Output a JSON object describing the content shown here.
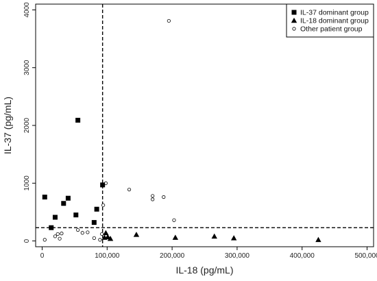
{
  "chart_data": {
    "type": "scatter",
    "title": "",
    "xlabel": "IL-18 (pg/mL)",
    "ylabel": "IL-37 (pg/mL)",
    "xlim": [
      -10000,
      510000
    ],
    "ylim": [
      -100,
      4100
    ],
    "x_ticks": [
      0,
      100000,
      200000,
      300000,
      400000,
      500000
    ],
    "x_tick_labels": [
      "0",
      "100,000",
      "200,000",
      "300,000",
      "400,000",
      "500,000"
    ],
    "y_ticks": [
      0,
      1000,
      2000,
      3000,
      4000
    ],
    "y_tick_labels": [
      "0",
      "1000",
      "2000",
      "3000",
      "4000"
    ],
    "grid": false,
    "legend_position": "top-right",
    "reference_lines": [
      {
        "orientation": "vertical",
        "x": 93000,
        "style": "dashed"
      },
      {
        "orientation": "horizontal",
        "y": 230,
        "style": "dashed"
      }
    ],
    "series": [
      {
        "name": "IL-37 dominant group",
        "marker": "filled-square",
        "color": "#000000",
        "points": [
          {
            "x": 4000,
            "y": 760
          },
          {
            "x": 14000,
            "y": 230
          },
          {
            "x": 20000,
            "y": 410
          },
          {
            "x": 33000,
            "y": 650
          },
          {
            "x": 40000,
            "y": 740
          },
          {
            "x": 52000,
            "y": 450
          },
          {
            "x": 55000,
            "y": 2090
          },
          {
            "x": 80000,
            "y": 320
          },
          {
            "x": 84000,
            "y": 550
          },
          {
            "x": 93000,
            "y": 970
          }
        ]
      },
      {
        "name": "IL-18 dominant group",
        "marker": "filled-triangle",
        "color": "#000000",
        "points": [
          {
            "x": 96000,
            "y": 60
          },
          {
            "x": 98000,
            "y": 140
          },
          {
            "x": 101000,
            "y": 70
          },
          {
            "x": 105000,
            "y": 40
          },
          {
            "x": 145000,
            "y": 110
          },
          {
            "x": 205000,
            "y": 60
          },
          {
            "x": 265000,
            "y": 80
          },
          {
            "x": 295000,
            "y": 50
          },
          {
            "x": 425000,
            "y": 20
          }
        ]
      },
      {
        "name": "Other patient group",
        "marker": "open-circle",
        "color": "#000000",
        "points": [
          {
            "x": 4000,
            "y": 20
          },
          {
            "x": 20000,
            "y": 80
          },
          {
            "x": 24000,
            "y": 120
          },
          {
            "x": 27000,
            "y": 40
          },
          {
            "x": 30000,
            "y": 130
          },
          {
            "x": 55000,
            "y": 190
          },
          {
            "x": 62000,
            "y": 140
          },
          {
            "x": 70000,
            "y": 150
          },
          {
            "x": 80000,
            "y": 50
          },
          {
            "x": 89000,
            "y": 20
          },
          {
            "x": 92000,
            "y": 120
          },
          {
            "x": 94000,
            "y": 620
          },
          {
            "x": 98000,
            "y": 1000
          },
          {
            "x": 134000,
            "y": 890
          },
          {
            "x": 170000,
            "y": 780
          },
          {
            "x": 170000,
            "y": 720
          },
          {
            "x": 187000,
            "y": 760
          },
          {
            "x": 195000,
            "y": 3810
          },
          {
            "x": 203000,
            "y": 360
          }
        ]
      }
    ]
  }
}
